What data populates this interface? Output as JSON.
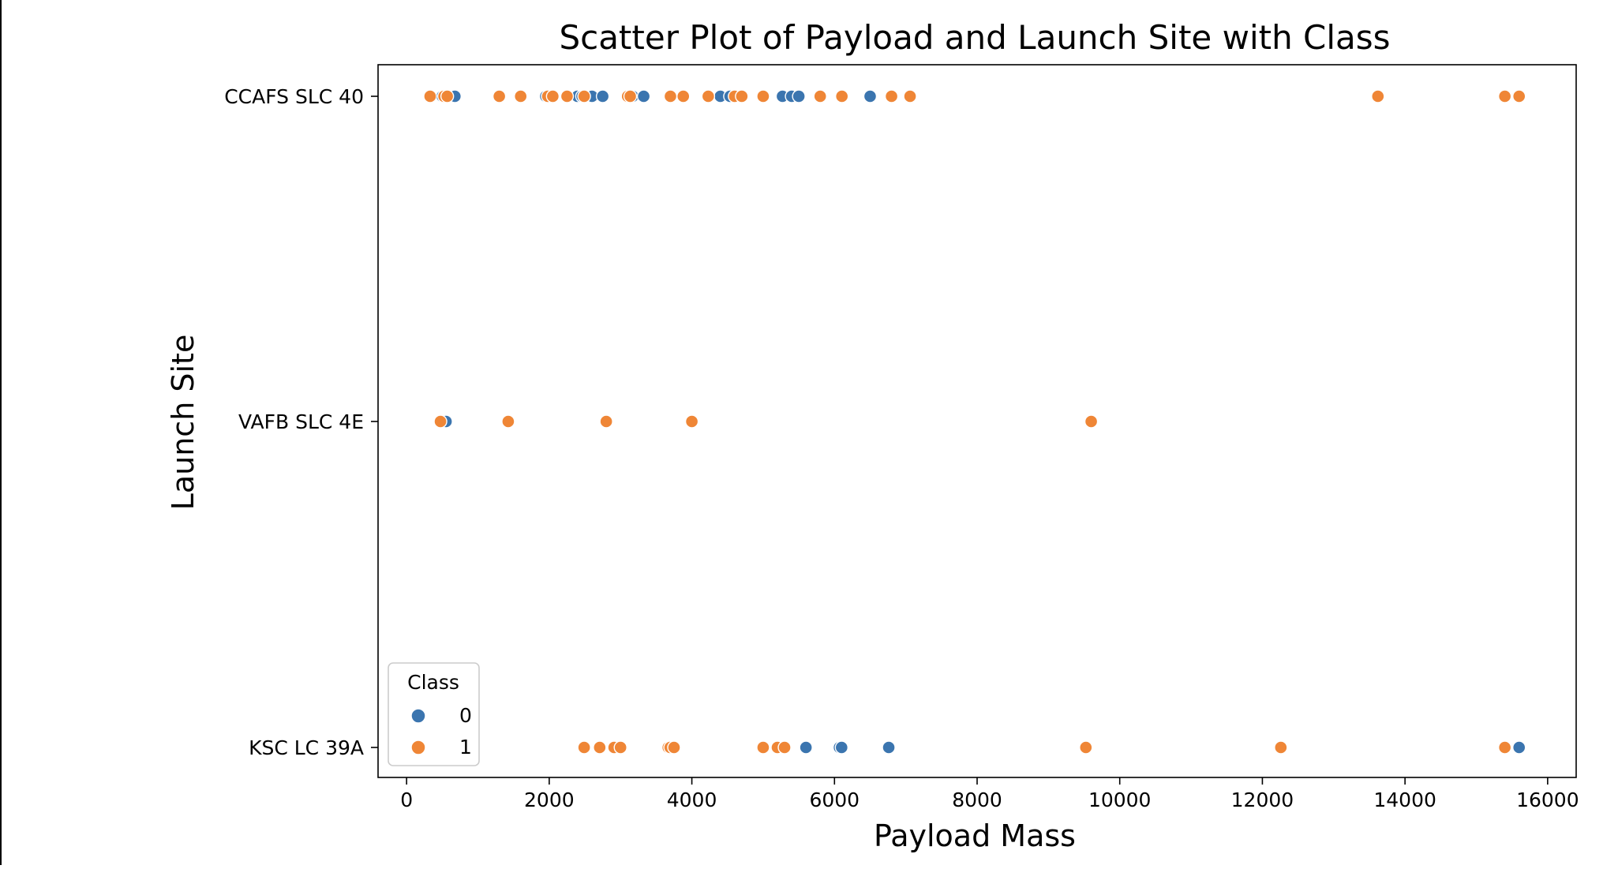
{
  "chart_data": {
    "type": "scatter",
    "title": "Scatter Plot of Payload and Launch Site with Class",
    "xlabel": "Payload Mass",
    "ylabel": "Launch Site",
    "xlim": [
      -400,
      16400
    ],
    "xticks": [
      0,
      2000,
      4000,
      6000,
      8000,
      10000,
      12000,
      14000,
      16000
    ],
    "xtick_labels": [
      "0",
      "2000",
      "4000",
      "6000",
      "8000",
      "10000",
      "12000",
      "14000",
      "16000"
    ],
    "categories": [
      "CCAFS SLC 40",
      "VAFB SLC 4E",
      "KSC LC 39A"
    ],
    "grid": false,
    "legend": {
      "title": "Class",
      "placement": "lower-left",
      "entries": [
        {
          "label": "0",
          "color": "#3b75af"
        },
        {
          "label": "1",
          "color": "#ef8636"
        }
      ]
    },
    "series": [
      {
        "name": "0",
        "color": "#3b75af",
        "points": [
          {
            "x": 500,
            "y": "CCAFS SLC 40"
          },
          {
            "x": 677,
            "y": "CCAFS SLC 40"
          },
          {
            "x": 1952,
            "y": "CCAFS SLC 40"
          },
          {
            "x": 2395,
            "y": "CCAFS SLC 40"
          },
          {
            "x": 2460,
            "y": "CCAFS SLC 40"
          },
          {
            "x": 2600,
            "y": "CCAFS SLC 40"
          },
          {
            "x": 2750,
            "y": "CCAFS SLC 40"
          },
          {
            "x": 3170,
            "y": "CCAFS SLC 40"
          },
          {
            "x": 3325,
            "y": "CCAFS SLC 40"
          },
          {
            "x": 4400,
            "y": "CCAFS SLC 40"
          },
          {
            "x": 4535,
            "y": "CCAFS SLC 40"
          },
          {
            "x": 4707,
            "y": "CCAFS SLC 40"
          },
          {
            "x": 5271,
            "y": "CCAFS SLC 40"
          },
          {
            "x": 5400,
            "y": "CCAFS SLC 40"
          },
          {
            "x": 5500,
            "y": "CCAFS SLC 40"
          },
          {
            "x": 6500,
            "y": "CCAFS SLC 40"
          },
          {
            "x": 553,
            "y": "VAFB SLC 4E"
          },
          {
            "x": 5600,
            "y": "KSC LC 39A"
          },
          {
            "x": 6070,
            "y": "KSC LC 39A"
          },
          {
            "x": 6100,
            "y": "KSC LC 39A"
          },
          {
            "x": 6761,
            "y": "KSC LC 39A"
          },
          {
            "x": 15600,
            "y": "KSC LC 39A"
          }
        ]
      },
      {
        "name": "1",
        "color": "#ef8636",
        "points": [
          {
            "x": 330,
            "y": "CCAFS SLC 40"
          },
          {
            "x": 525,
            "y": "CCAFS SLC 40"
          },
          {
            "x": 570,
            "y": "CCAFS SLC 40"
          },
          {
            "x": 1300,
            "y": "CCAFS SLC 40"
          },
          {
            "x": 1600,
            "y": "CCAFS SLC 40"
          },
          {
            "x": 1980,
            "y": "CCAFS SLC 40"
          },
          {
            "x": 2050,
            "y": "CCAFS SLC 40"
          },
          {
            "x": 2250,
            "y": "CCAFS SLC 40"
          },
          {
            "x": 2490,
            "y": "CCAFS SLC 40"
          },
          {
            "x": 3100,
            "y": "CCAFS SLC 40"
          },
          {
            "x": 3136,
            "y": "CCAFS SLC 40"
          },
          {
            "x": 3700,
            "y": "CCAFS SLC 40"
          },
          {
            "x": 3880,
            "y": "CCAFS SLC 40"
          },
          {
            "x": 4230,
            "y": "CCAFS SLC 40"
          },
          {
            "x": 4600,
            "y": "CCAFS SLC 40"
          },
          {
            "x": 4700,
            "y": "CCAFS SLC 40"
          },
          {
            "x": 5000,
            "y": "CCAFS SLC 40"
          },
          {
            "x": 5800,
            "y": "CCAFS SLC 40"
          },
          {
            "x": 6104,
            "y": "CCAFS SLC 40"
          },
          {
            "x": 6800,
            "y": "CCAFS SLC 40"
          },
          {
            "x": 7060,
            "y": "CCAFS SLC 40"
          },
          {
            "x": 13620,
            "y": "CCAFS SLC 40"
          },
          {
            "x": 15400,
            "y": "CCAFS SLC 40"
          },
          {
            "x": 15600,
            "y": "CCAFS SLC 40"
          },
          {
            "x": 475,
            "y": "VAFB SLC 4E"
          },
          {
            "x": 1425,
            "y": "VAFB SLC 4E"
          },
          {
            "x": 2800,
            "y": "VAFB SLC 4E"
          },
          {
            "x": 4000,
            "y": "VAFB SLC 4E"
          },
          {
            "x": 9600,
            "y": "VAFB SLC 4E"
          },
          {
            "x": 2490,
            "y": "KSC LC 39A"
          },
          {
            "x": 2708,
            "y": "KSC LC 39A"
          },
          {
            "x": 2910,
            "y": "KSC LC 39A"
          },
          {
            "x": 3000,
            "y": "KSC LC 39A"
          },
          {
            "x": 3669,
            "y": "KSC LC 39A"
          },
          {
            "x": 3696,
            "y": "KSC LC 39A"
          },
          {
            "x": 3750,
            "y": "KSC LC 39A"
          },
          {
            "x": 5000,
            "y": "KSC LC 39A"
          },
          {
            "x": 5200,
            "y": "KSC LC 39A"
          },
          {
            "x": 5300,
            "y": "KSC LC 39A"
          },
          {
            "x": 9525,
            "y": "KSC LC 39A"
          },
          {
            "x": 12259,
            "y": "KSC LC 39A"
          },
          {
            "x": 15400,
            "y": "KSC LC 39A"
          }
        ]
      }
    ]
  }
}
